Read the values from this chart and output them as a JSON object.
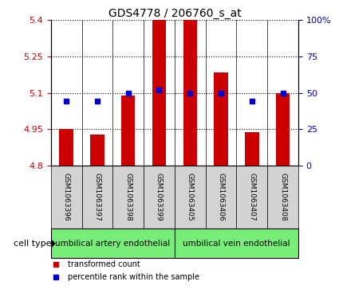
{
  "title": "GDS4778 / 206760_s_at",
  "samples": [
    "GSM1063396",
    "GSM1063397",
    "GSM1063398",
    "GSM1063399",
    "GSM1063405",
    "GSM1063406",
    "GSM1063407",
    "GSM1063408"
  ],
  "red_values": [
    4.951,
    4.928,
    5.09,
    5.4,
    5.4,
    5.185,
    4.938,
    5.1
  ],
  "blue_values": [
    44,
    44,
    50,
    52,
    50,
    50,
    44,
    50
  ],
  "ylim_left": [
    4.8,
    5.4
  ],
  "ylim_right": [
    0,
    100
  ],
  "yticks_left": [
    4.8,
    4.95,
    5.1,
    5.25,
    5.4
  ],
  "yticks_right": [
    0,
    25,
    50,
    75,
    100
  ],
  "ytick_labels_left": [
    "4.8",
    "4.95",
    "5.1",
    "5.25",
    "5.4"
  ],
  "ytick_labels_right": [
    "0",
    "25",
    "50",
    "75",
    "100%"
  ],
  "group1_label": "umbilical artery endothelial",
  "group2_label": "umbilical vein endothelial",
  "cell_type_label": "cell type",
  "legend_red": "transformed count",
  "legend_blue": "percentile rank within the sample",
  "group1_indices": [
    0,
    1,
    2,
    3
  ],
  "group2_indices": [
    4,
    5,
    6,
    7
  ],
  "bar_color": "#cc0000",
  "blue_color": "#0000cc",
  "group_bg": "#77ee77",
  "sample_bg": "#d3d3d3",
  "base_value": 4.8,
  "right_axis_color": "#0000cc",
  "left_axis_color": "#cc0000",
  "bar_width": 0.45
}
